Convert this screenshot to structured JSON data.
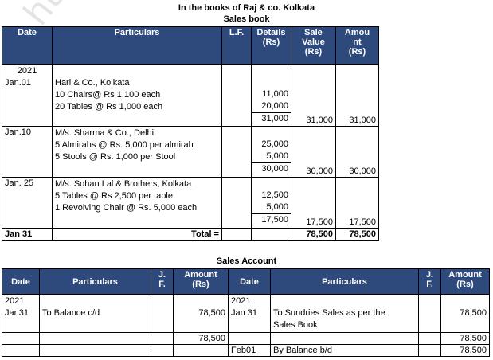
{
  "header": {
    "line1": "In the books of Raj & co. Kolkata",
    "line2": "Sales book"
  },
  "sales_book": {
    "columns": [
      "Date",
      "Particulars",
      "L.F.",
      "Details (Rs)",
      "Sale Value (Rs)",
      "Amount (Rs)"
    ],
    "col_date": "Date",
    "col_particulars": "Particulars",
    "col_lf": "L.F.",
    "col_details_1": "Details",
    "col_details_2": "(Rs)",
    "col_sale_1": "Sale",
    "col_sale_2": "Value",
    "col_sale_3": "(Rs)",
    "col_amount_1": "Amou",
    "col_amount_2": "nt",
    "col_amount_3": "(Rs)",
    "entries": [
      {
        "year": "2021",
        "date": "Jan.01",
        "particulars": [
          "Hari & Co., Kolkata",
          "10 Chairs@ Rs 1,100 each",
          "20 Tables @ Rs 1,000 each"
        ],
        "details": [
          "11,000",
          "20,000"
        ],
        "subtotal": "31,000",
        "sale_value": "31,000",
        "amount": "31,000"
      },
      {
        "date": "Jan.10",
        "particulars": [
          "M/s. Sharma & Co., Delhi",
          "5 Almirahs @ Rs. 5,000 per almirah",
          "5 Stools @ Rs. 1,000 per Stool"
        ],
        "details": [
          "25,000",
          "5,000"
        ],
        "subtotal": "30,000",
        "sale_value": "30,000",
        "amount": "30,000"
      },
      {
        "date": "Jan. 25",
        "particulars": [
          "M/s. Sohan Lal & Brothers, Kolkata",
          "5 Tables @ Rs 2,500 per table",
          "1 Revolving Chair @ Rs. 5,000 each"
        ],
        "details": [
          "12,500",
          "5,000"
        ],
        "subtotal": "17,500",
        "sale_value": "17,500",
        "amount": "17,500"
      }
    ],
    "total": {
      "date": "Jan 31",
      "label": "Total =",
      "sale_value": "78,500",
      "amount": "78,500"
    }
  },
  "sales_account": {
    "title": "Sales Account",
    "col_date": "Date",
    "col_particulars": "Particulars",
    "col_jf_1": "J.",
    "col_jf_2": "F.",
    "col_amount_1": "Amount",
    "col_amount_2": "(Rs)",
    "debit": {
      "year": "2021",
      "date": "Jan31",
      "particulars": "To Balance c/d",
      "amount": "78,500",
      "total": "78,500"
    },
    "credit": {
      "year": "2021",
      "date": "Jan 31",
      "particulars_1": "To Sundries Sales as per the",
      "particulars_2": "Sales Book",
      "amount": "78,500",
      "total": "78,500",
      "bd_date": "Feb01",
      "bd_particulars": "By Balance b/d",
      "bd_amount": "78,500"
    }
  },
  "watermark": "https://www.studiestoday"
}
